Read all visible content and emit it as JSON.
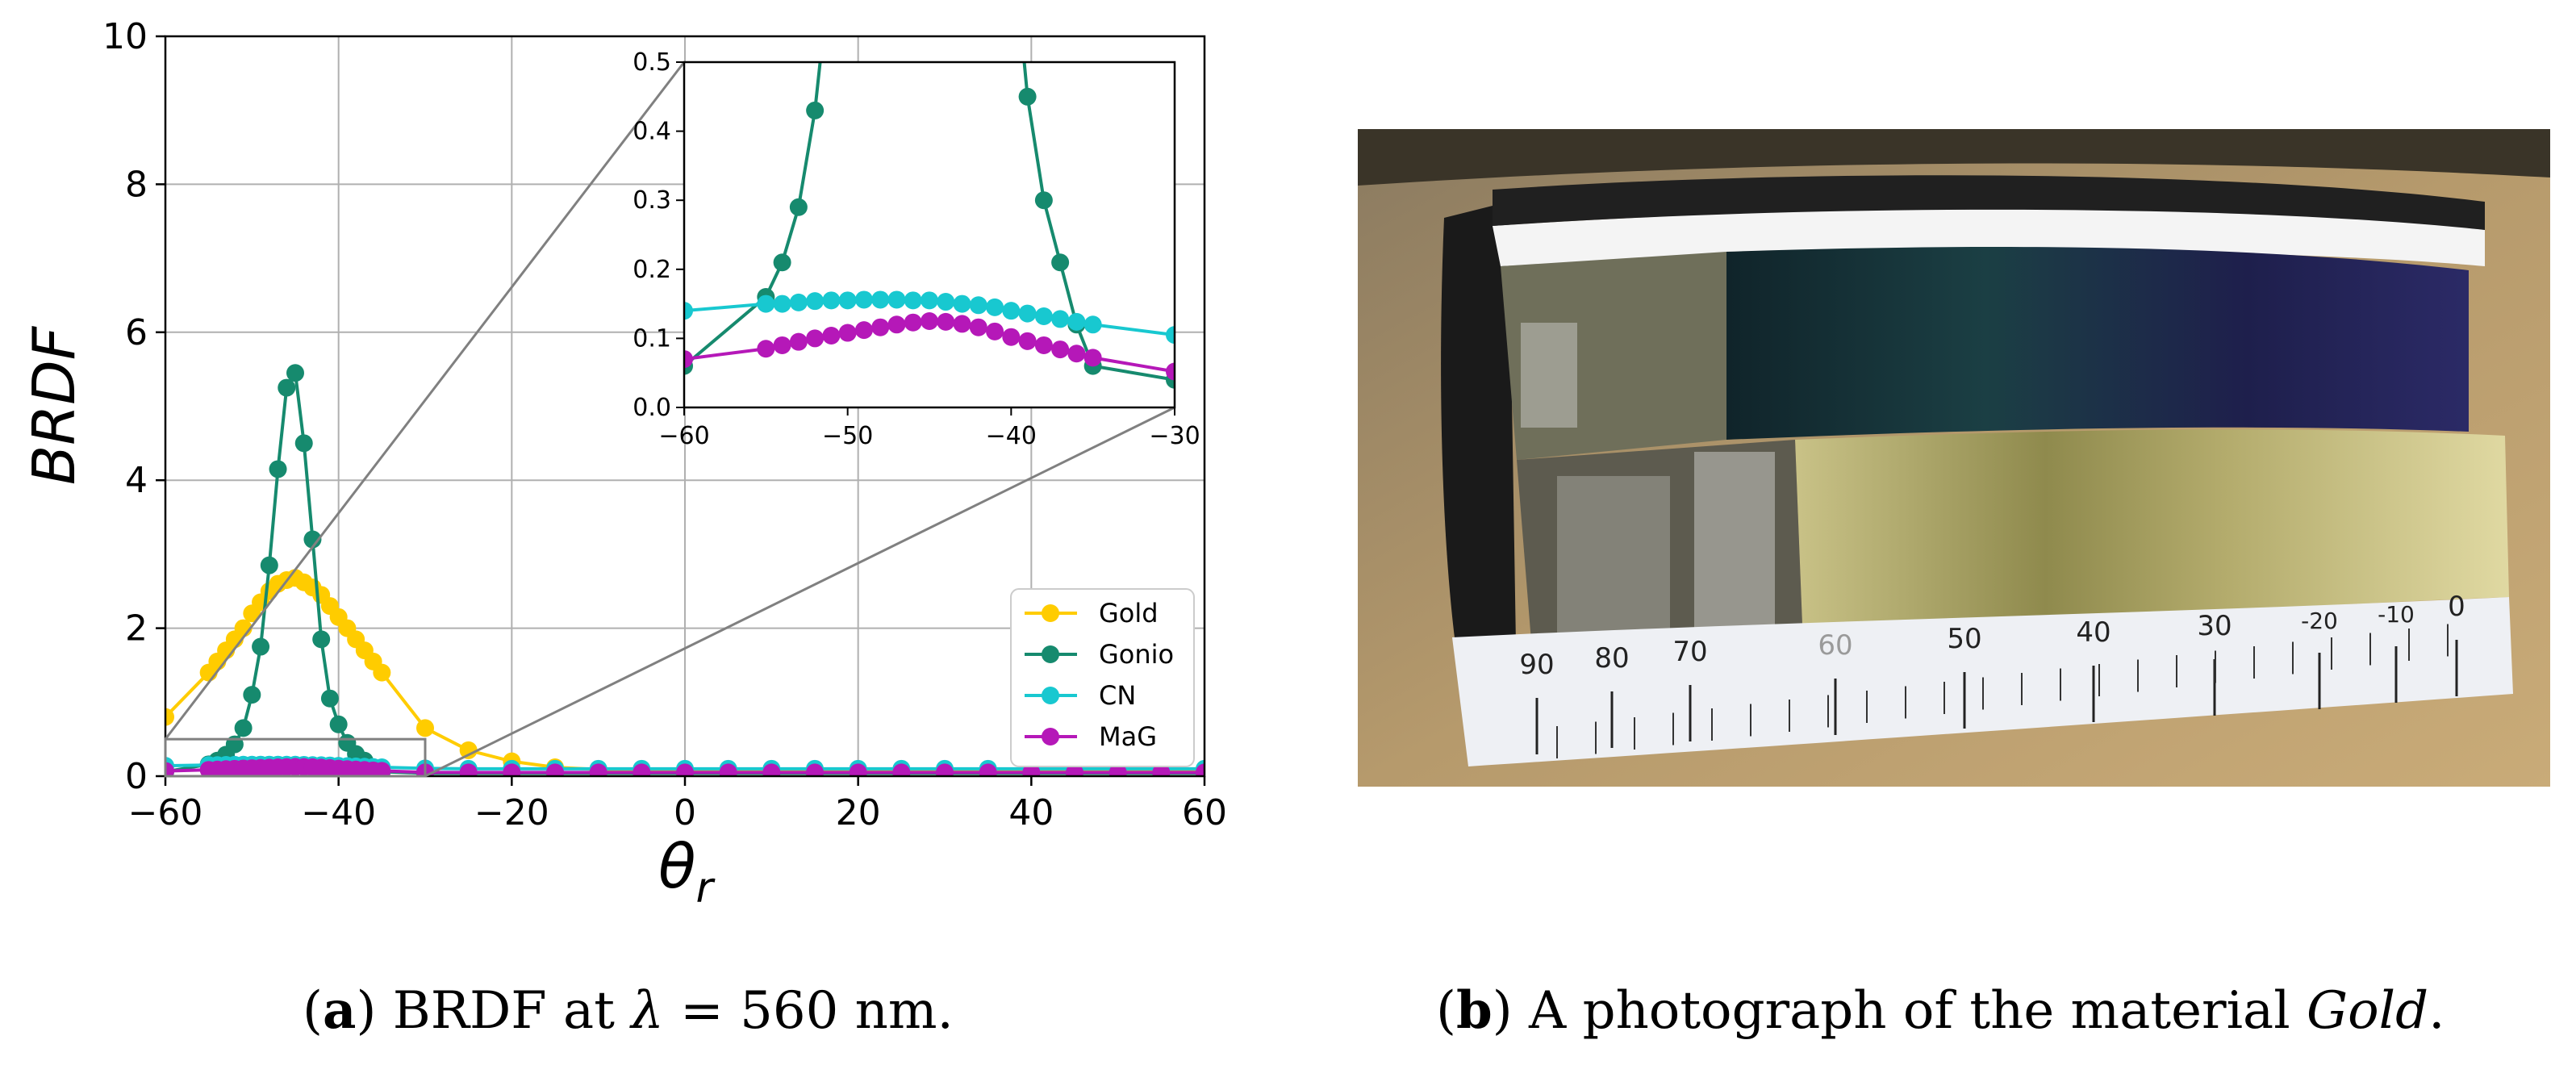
{
  "figure": {
    "panel_a": {
      "caption_tag": "a",
      "caption_pre": "BRDF at ",
      "caption_lambda": "λ",
      "caption_post": " = 560 nm."
    },
    "panel_b": {
      "caption_tag": "b",
      "caption_pre": "A photograph of the material ",
      "caption_material": "Gold",
      "caption_post": ".",
      "scale_labels": [
        "90",
        "80",
        "70",
        "60",
        "50",
        "40",
        "30",
        "-20",
        "-10",
        "0"
      ]
    }
  },
  "chart_data": [
    {
      "type": "line",
      "ylabel": "BRDF",
      "xlabel": "θr",
      "xlim": [
        -60,
        60
      ],
      "ylim": [
        0,
        10
      ],
      "xticks": [
        -60,
        -40,
        -20,
        0,
        20,
        40,
        60
      ],
      "yticks": [
        0,
        2,
        4,
        6,
        8,
        10
      ],
      "xtick_labels": [
        "−60",
        "−40",
        "−20",
        "0",
        "20",
        "40",
        "60"
      ],
      "yticks_labels": [
        "0",
        "2",
        "4",
        "6",
        "8",
        "10"
      ],
      "grid": true,
      "legend_position": "lower-right",
      "colors": {
        "Gold": "#FFCC00",
        "Gonio": "#168A6E",
        "CN": "#18C8D0",
        "MaG": "#B518B8"
      },
      "series": [
        {
          "name": "Gold",
          "x": [
            -60,
            -55,
            -54,
            -53,
            -52,
            -51,
            -50,
            -49,
            -48,
            -47,
            -46,
            -45,
            -44,
            -43,
            -42,
            -41,
            -40,
            -39,
            -38,
            -37,
            -36,
            -35,
            -30,
            -25,
            -20,
            -15,
            -10,
            -5,
            0,
            5,
            10,
            15,
            20,
            25,
            30,
            35,
            40,
            45,
            50,
            55,
            60
          ],
          "y": [
            0.8,
            1.4,
            1.55,
            1.7,
            1.85,
            2.0,
            2.2,
            2.35,
            2.5,
            2.6,
            2.65,
            2.68,
            2.62,
            2.55,
            2.45,
            2.3,
            2.15,
            2.0,
            1.85,
            1.7,
            1.55,
            1.4,
            0.65,
            0.35,
            0.2,
            0.12,
            0.09,
            0.08,
            0.07,
            0.07,
            0.07,
            0.07,
            0.07,
            0.07,
            0.07,
            0.07,
            0.07,
            0.07,
            0.07,
            0.07,
            0.07
          ]
        },
        {
          "name": "Gonio",
          "x": [
            -60,
            -55,
            -54,
            -53,
            -52,
            -51,
            -50,
            -49,
            -48,
            -47,
            -46,
            -45,
            -44,
            -43,
            -42,
            -41,
            -40,
            -39,
            -38,
            -37,
            -36,
            -35,
            -30,
            -25,
            -20,
            -15,
            -10,
            -5,
            0,
            5,
            10,
            15,
            20,
            25,
            30,
            35,
            40,
            45,
            50,
            55,
            60
          ],
          "y": [
            0.06,
            0.16,
            0.21,
            0.29,
            0.43,
            0.65,
            1.1,
            1.75,
            2.85,
            4.15,
            5.25,
            5.45,
            4.5,
            3.2,
            1.85,
            1.05,
            0.7,
            0.45,
            0.3,
            0.21,
            0.12,
            0.06,
            0.04,
            0.04,
            0.04,
            0.04,
            0.04,
            0.04,
            0.04,
            0.04,
            0.04,
            0.04,
            0.04,
            0.04,
            0.04,
            0.04,
            0.04,
            0.04,
            0.04,
            0.04,
            0.04
          ]
        },
        {
          "name": "CN",
          "x": [
            -60,
            -55,
            -54,
            -53,
            -52,
            -51,
            -50,
            -49,
            -48,
            -47,
            -46,
            -45,
            -44,
            -43,
            -42,
            -41,
            -40,
            -39,
            -38,
            -37,
            -36,
            -35,
            -30,
            -25,
            -20,
            -15,
            -10,
            -5,
            0,
            5,
            10,
            15,
            20,
            25,
            30,
            35,
            40,
            45,
            50,
            55,
            60
          ],
          "y": [
            0.14,
            0.15,
            0.15,
            0.152,
            0.154,
            0.155,
            0.155,
            0.156,
            0.156,
            0.156,
            0.155,
            0.155,
            0.153,
            0.15,
            0.148,
            0.145,
            0.14,
            0.136,
            0.132,
            0.128,
            0.124,
            0.12,
            0.105,
            0.1,
            0.1,
            0.1,
            0.1,
            0.1,
            0.1,
            0.1,
            0.1,
            0.1,
            0.1,
            0.1,
            0.1,
            0.1,
            0.1,
            0.1,
            0.1,
            0.1,
            0.1
          ]
        },
        {
          "name": "MaG",
          "x": [
            -60,
            -55,
            -54,
            -53,
            -52,
            -51,
            -50,
            -49,
            -48,
            -47,
            -46,
            -45,
            -44,
            -43,
            -42,
            -41,
            -40,
            -39,
            -38,
            -37,
            -36,
            -35,
            -30,
            -25,
            -20,
            -15,
            -10,
            -5,
            0,
            5,
            10,
            15,
            20,
            25,
            30,
            35,
            40,
            45,
            50,
            55,
            60
          ],
          "y": [
            0.07,
            0.085,
            0.09,
            0.095,
            0.1,
            0.104,
            0.108,
            0.112,
            0.116,
            0.12,
            0.123,
            0.125,
            0.124,
            0.121,
            0.116,
            0.11,
            0.102,
            0.096,
            0.09,
            0.084,
            0.078,
            0.072,
            0.052,
            0.05,
            0.05,
            0.05,
            0.05,
            0.05,
            0.05,
            0.05,
            0.05,
            0.05,
            0.05,
            0.05,
            0.05,
            0.05,
            0.05,
            0.05,
            0.05,
            0.05,
            0.05
          ]
        }
      ]
    },
    {
      "type": "line",
      "xlim": [
        -60,
        -30
      ],
      "ylim": [
        0,
        0.5
      ],
      "xticks": [
        -60,
        -50,
        -40,
        -30
      ],
      "yticks": [
        0.0,
        0.1,
        0.2,
        0.3,
        0.4,
        0.5
      ],
      "xtick_labels": [
        "−60",
        "−50",
        "−40",
        "−30"
      ],
      "yticks_labels": [
        "0.0",
        "0.1",
        "0.2",
        "0.3",
        "0.4",
        "0.5"
      ],
      "grid": false
    }
  ]
}
